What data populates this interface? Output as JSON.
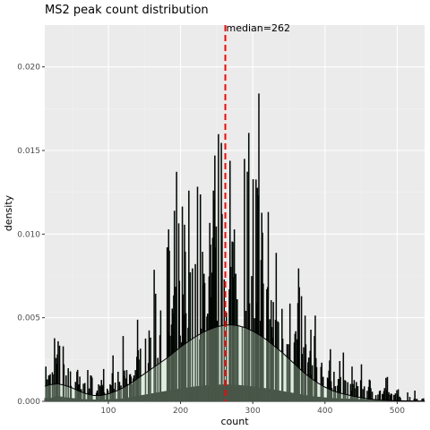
{
  "chart_data": {
    "type": "histogram",
    "title": "MS2 peak count distribution",
    "xlabel": "count",
    "ylabel": "density",
    "xlim": [
      12,
      538
    ],
    "ylim": [
      0,
      0.0225
    ],
    "x_ticks": [
      100,
      200,
      300,
      400,
      500
    ],
    "y_ticks": [
      0.0,
      0.005,
      0.01,
      0.015,
      0.02
    ],
    "y_tick_labels": [
      "0.000",
      "0.005",
      "0.010",
      "0.015",
      "0.020"
    ],
    "bin_width": 1,
    "median": 262,
    "median_label": "median=262",
    "grid": true,
    "histogram_profile": [
      {
        "x": 20,
        "y": 0.0012
      },
      {
        "x": 30,
        "y": 0.002
      },
      {
        "x": 40,
        "y": 0.0015
      },
      {
        "x": 60,
        "y": 0.0008
      },
      {
        "x": 80,
        "y": 0.0006
      },
      {
        "x": 100,
        "y": 0.0006
      },
      {
        "x": 120,
        "y": 0.001
      },
      {
        "x": 140,
        "y": 0.002
      },
      {
        "x": 160,
        "y": 0.003
      },
      {
        "x": 180,
        "y": 0.004
      },
      {
        "x": 200,
        "y": 0.005
      },
      {
        "x": 220,
        "y": 0.0058
      },
      {
        "x": 240,
        "y": 0.0064
      },
      {
        "x": 262,
        "y": 0.0066
      },
      {
        "x": 280,
        "y": 0.0064
      },
      {
        "x": 300,
        "y": 0.0058
      },
      {
        "x": 320,
        "y": 0.005
      },
      {
        "x": 340,
        "y": 0.004
      },
      {
        "x": 360,
        "y": 0.003
      },
      {
        "x": 380,
        "y": 0.002
      },
      {
        "x": 400,
        "y": 0.0014
      },
      {
        "x": 420,
        "y": 0.001
      },
      {
        "x": 440,
        "y": 0.0008
      },
      {
        "x": 470,
        "y": 0.0005
      },
      {
        "x": 500,
        "y": 0.0003
      },
      {
        "x": 538,
        "y": 0.0001
      }
    ],
    "density_curve": {
      "x": [
        12,
        20,
        30,
        40,
        50,
        60,
        70,
        80,
        90,
        100,
        110,
        120,
        130,
        140,
        150,
        160,
        170,
        180,
        190,
        200,
        210,
        220,
        230,
        240,
        250,
        260,
        270,
        280,
        290,
        300,
        310,
        320,
        330,
        340,
        350,
        360,
        370,
        380,
        390,
        400,
        410,
        420,
        430,
        440,
        450,
        460,
        470,
        480,
        490,
        500,
        510,
        520,
        530,
        538
      ],
      "y": [
        0.0009,
        0.001,
        0.00105,
        0.00095,
        0.0008,
        0.0006,
        0.00045,
        0.00035,
        0.00035,
        0.00045,
        0.0006,
        0.0008,
        0.00105,
        0.00135,
        0.00165,
        0.00195,
        0.00225,
        0.00255,
        0.0029,
        0.00325,
        0.00355,
        0.00385,
        0.0041,
        0.0043,
        0.00445,
        0.00455,
        0.00458,
        0.00452,
        0.0044,
        0.0042,
        0.00395,
        0.00365,
        0.0033,
        0.00295,
        0.00255,
        0.00215,
        0.00175,
        0.0014,
        0.0011,
        0.00085,
        0.00065,
        0.0005,
        0.0004,
        0.0003,
        0.00022,
        0.00015,
        0.0001,
        7e-05,
        5e-05,
        3e-05,
        2e-05,
        1e-05,
        5e-06,
        3e-06
      ]
    },
    "colors": {
      "panel_background": "#ebebeb",
      "grid_major": "#ffffff",
      "grid_minor": "#f2f2f2",
      "bar_outline": "#000000",
      "bar_fill_dense": "#00330a",
      "density_fill": "#cdeecd",
      "density_line": "#000000",
      "median_line": "#ff0000",
      "tick_label": "#4d4d4d",
      "tick_mark": "#333333"
    }
  }
}
